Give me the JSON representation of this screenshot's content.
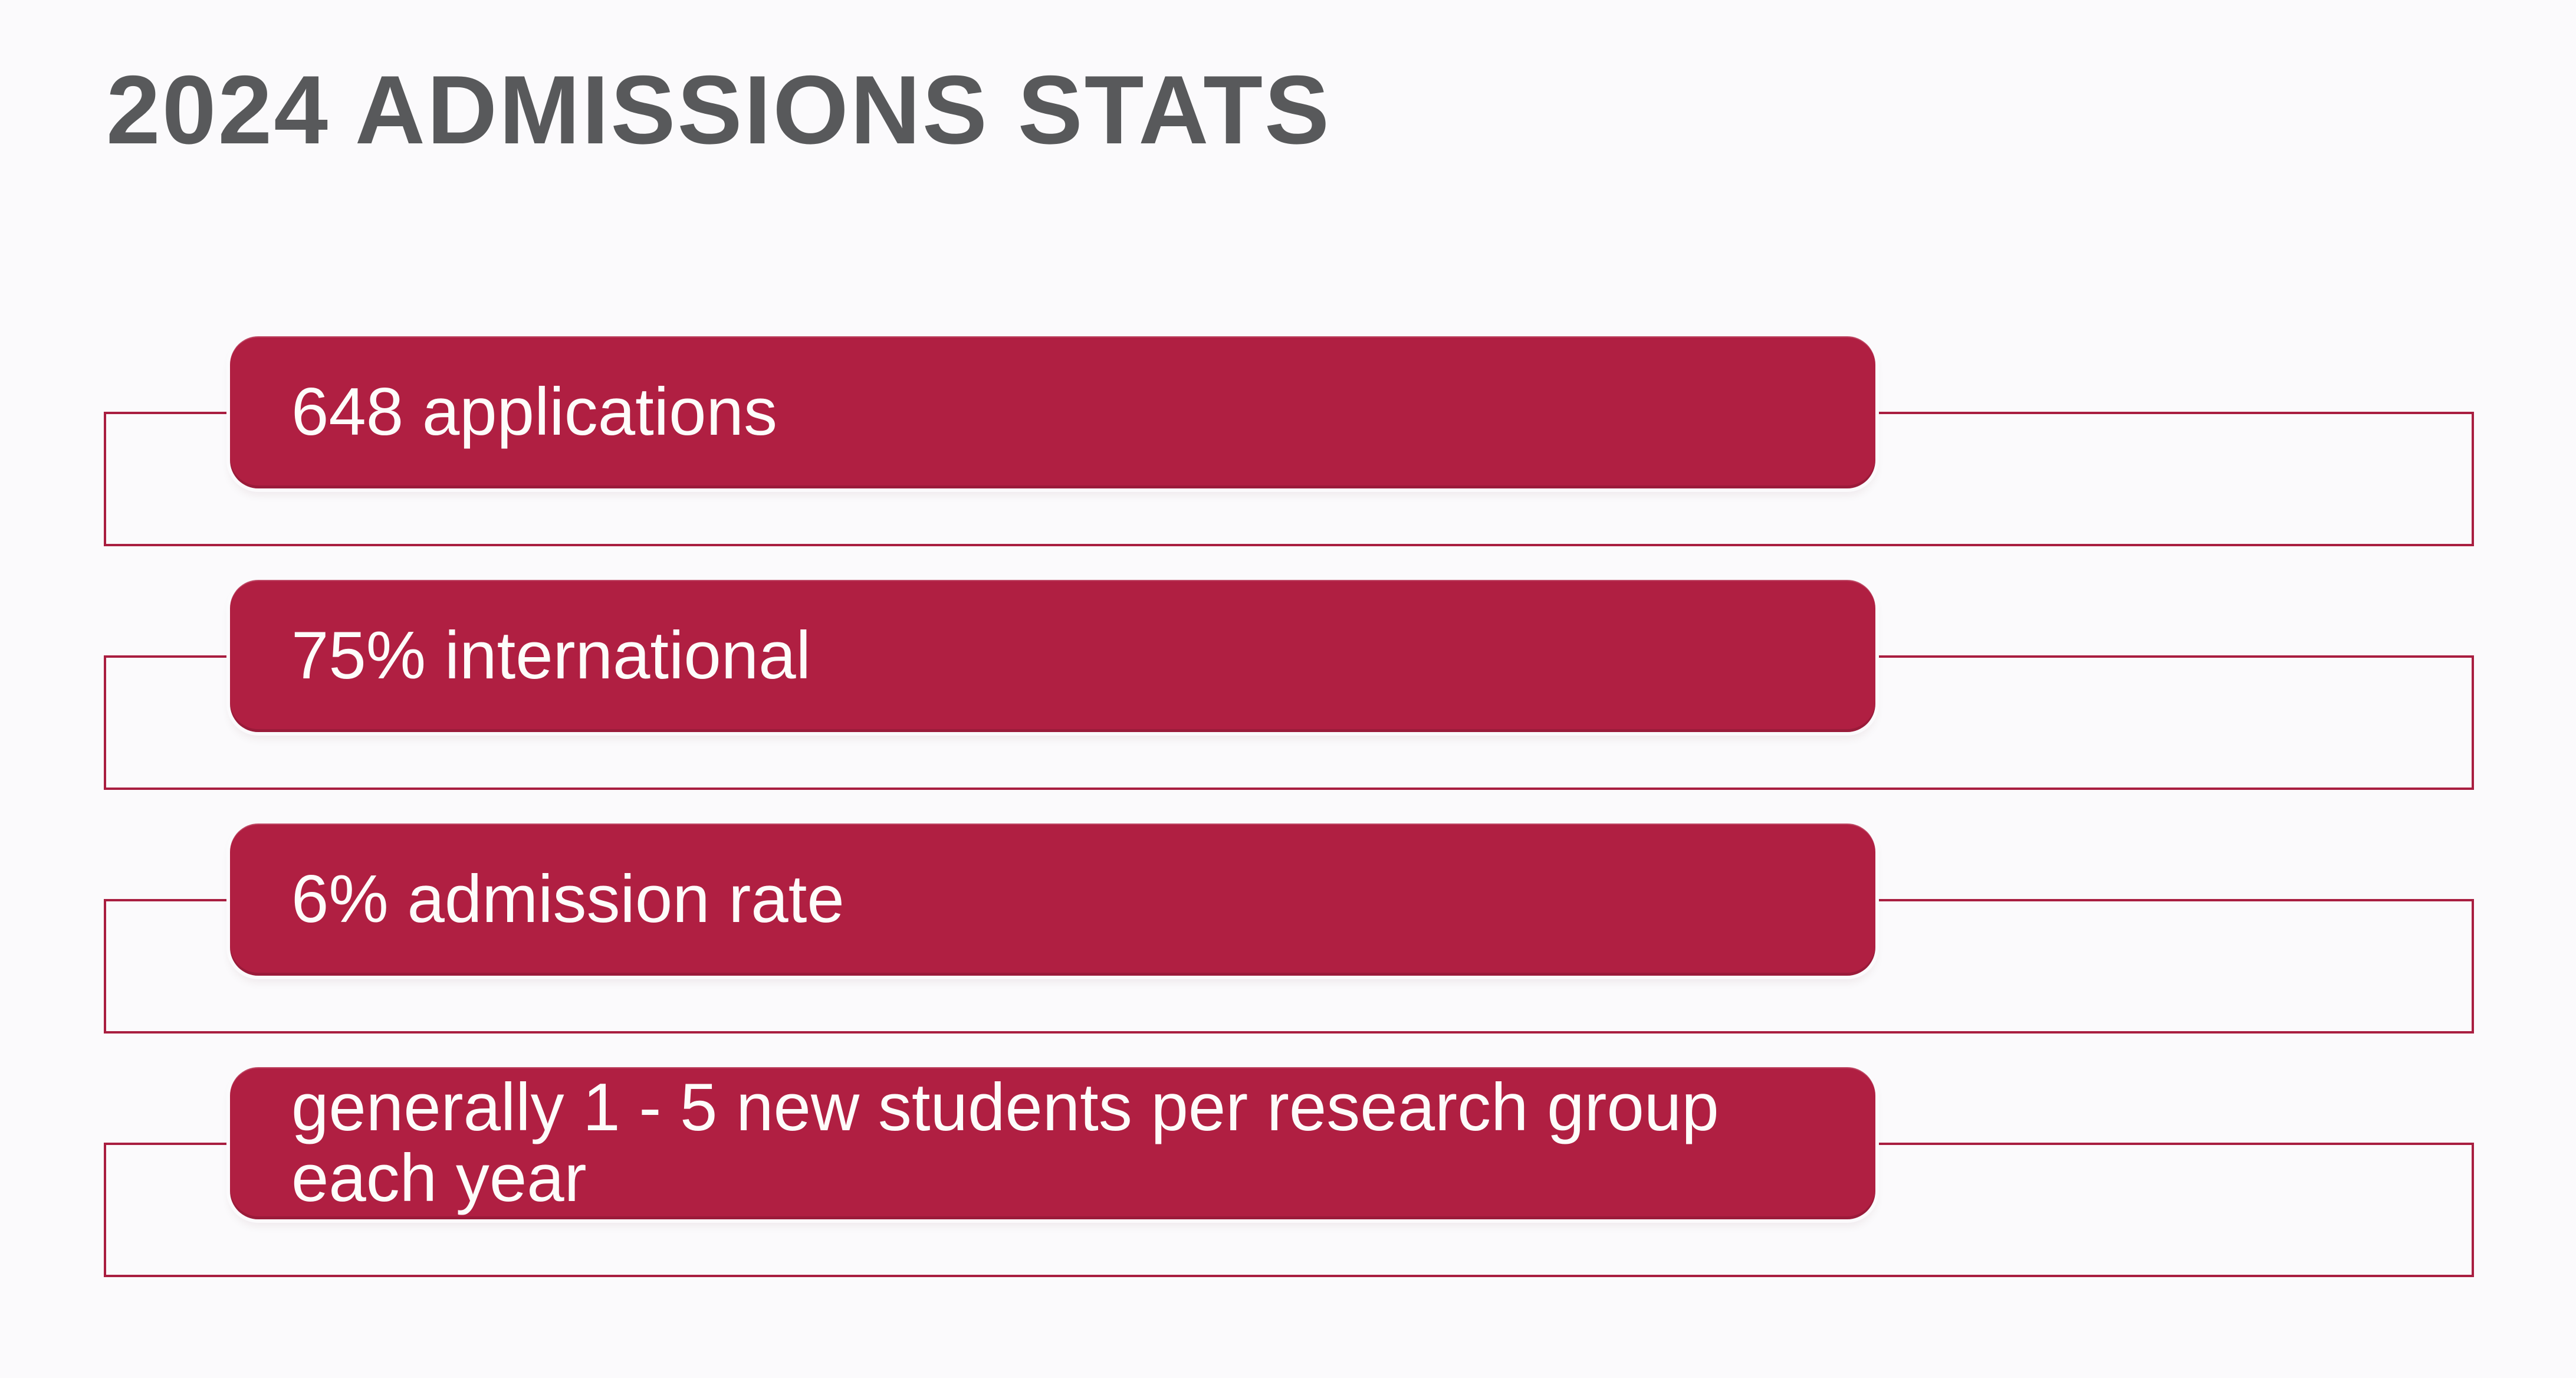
{
  "slide": {
    "title": "2024 ADMISSIONS STATS",
    "stats": [
      {
        "label": "648 applications"
      },
      {
        "label": "75% international"
      },
      {
        "label": "6% admission rate"
      },
      {
        "label": "generally 1 - 5 new students per research group each year"
      }
    ],
    "colors": {
      "accent": "#b01f42",
      "accent_border": "#a91e40",
      "accent_dark": "#8e1834",
      "title_color": "#58595b",
      "background": "#fbfafc",
      "box_text": "#fdfcfa"
    }
  }
}
